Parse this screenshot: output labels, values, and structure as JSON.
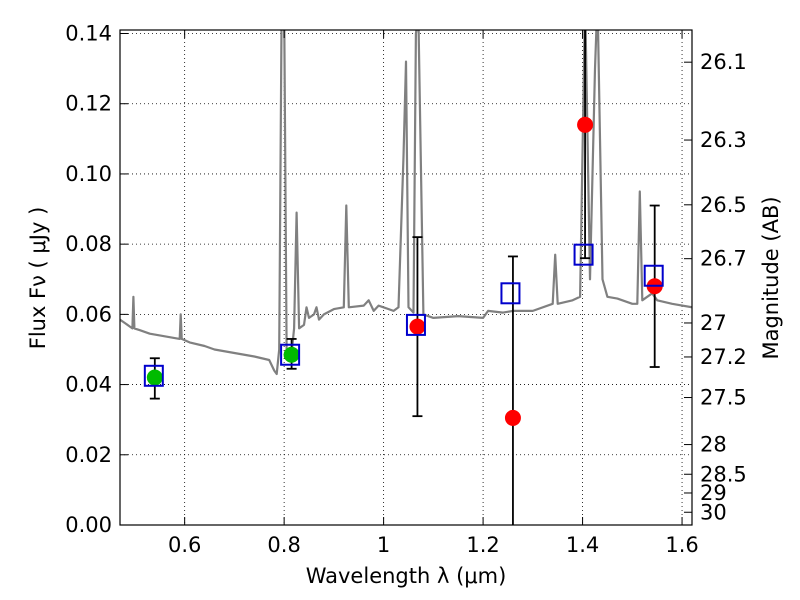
{
  "chart_data": {
    "type": "scatter",
    "xlabel": "Wavelength  λ (μm)",
    "ylabel": "Flux  Fν  ( μJy )",
    "y2label": "Magnitude (AB)",
    "xlim": [
      0.47,
      1.62
    ],
    "ylim": [
      0.0,
      0.141
    ],
    "grid": true,
    "xticks": [
      0.6,
      0.8,
      1.0,
      1.2,
      1.4,
      1.6
    ],
    "xtick_labels": [
      "0.6",
      "0.8",
      "1",
      "1.2",
      "1.4",
      "1.6"
    ],
    "yticks": [
      0.0,
      0.02,
      0.04,
      0.06,
      0.08,
      0.1,
      0.12,
      0.14
    ],
    "ytick_labels": [
      "0.00",
      "0.02",
      "0.04",
      "0.06",
      "0.08",
      "0.10",
      "0.12",
      "0.14"
    ],
    "mag_ticks": [
      26.1,
      26.3,
      26.5,
      26.7,
      27.0,
      27.2,
      27.5,
      28.0,
      28.5,
      29.0,
      30.0
    ],
    "mag_tick_labels": [
      "26.1",
      "26.3",
      "26.5",
      "26.7",
      "27",
      "27.2",
      "27.5",
      "28",
      "28.5",
      "29",
      "30"
    ],
    "colors": {
      "model_spectrum": "#808080",
      "ground_obs": "#00bb00",
      "hst_obs": "#ff0000",
      "model_phot": "#0000cc",
      "errorbar": "#000000"
    },
    "model_spectrum": [
      [
        0.47,
        0.0585
      ],
      [
        0.48,
        0.0575
      ],
      [
        0.49,
        0.0565
      ],
      [
        0.495,
        0.056
      ],
      [
        0.497,
        0.065
      ],
      [
        0.499,
        0.056
      ],
      [
        0.51,
        0.0555
      ],
      [
        0.53,
        0.0545
      ],
      [
        0.55,
        0.054
      ],
      [
        0.57,
        0.0535
      ],
      [
        0.59,
        0.053
      ],
      [
        0.592,
        0.06
      ],
      [
        0.594,
        0.053
      ],
      [
        0.61,
        0.052
      ],
      [
        0.64,
        0.051
      ],
      [
        0.66,
        0.05
      ],
      [
        0.7,
        0.049
      ],
      [
        0.74,
        0.048
      ],
      [
        0.77,
        0.047
      ],
      [
        0.78,
        0.044
      ],
      [
        0.785,
        0.043
      ],
      [
        0.79,
        0.05
      ],
      [
        0.795,
        0.15
      ],
      [
        0.8,
        0.15
      ],
      [
        0.805,
        0.05
      ],
      [
        0.815,
        0.049
      ],
      [
        0.82,
        0.056
      ],
      [
        0.825,
        0.089
      ],
      [
        0.83,
        0.056
      ],
      [
        0.84,
        0.057
      ],
      [
        0.845,
        0.062
      ],
      [
        0.85,
        0.059
      ],
      [
        0.86,
        0.06
      ],
      [
        0.865,
        0.062
      ],
      [
        0.87,
        0.0585
      ],
      [
        0.88,
        0.06
      ],
      [
        0.9,
        0.0615
      ],
      [
        0.92,
        0.062
      ],
      [
        0.925,
        0.091
      ],
      [
        0.93,
        0.062
      ],
      [
        0.96,
        0.0625
      ],
      [
        0.97,
        0.064
      ],
      [
        0.98,
        0.061
      ],
      [
        0.99,
        0.0625
      ],
      [
        1.02,
        0.061
      ],
      [
        1.03,
        0.062
      ],
      [
        1.04,
        0.105
      ],
      [
        1.045,
        0.132
      ],
      [
        1.05,
        0.062
      ],
      [
        1.06,
        0.0605
      ],
      [
        1.065,
        0.14
      ],
      [
        1.07,
        0.145
      ],
      [
        1.08,
        0.06
      ],
      [
        1.1,
        0.059
      ],
      [
        1.15,
        0.0595
      ],
      [
        1.2,
        0.059
      ],
      [
        1.21,
        0.061
      ],
      [
        1.24,
        0.0605
      ],
      [
        1.26,
        0.061
      ],
      [
        1.3,
        0.061
      ],
      [
        1.34,
        0.063
      ],
      [
        1.345,
        0.077
      ],
      [
        1.35,
        0.063
      ],
      [
        1.38,
        0.064
      ],
      [
        1.395,
        0.065
      ],
      [
        1.405,
        0.15
      ],
      [
        1.415,
        0.07
      ],
      [
        1.425,
        0.13
      ],
      [
        1.43,
        0.15
      ],
      [
        1.44,
        0.07
      ],
      [
        1.45,
        0.065
      ],
      [
        1.47,
        0.0645
      ],
      [
        1.5,
        0.063
      ],
      [
        1.51,
        0.063
      ],
      [
        1.515,
        0.095
      ],
      [
        1.52,
        0.064
      ],
      [
        1.53,
        0.065
      ],
      [
        1.54,
        0.066
      ],
      [
        1.55,
        0.064
      ],
      [
        1.58,
        0.063
      ],
      [
        1.62,
        0.062
      ]
    ],
    "model_phot": [
      {
        "x": 0.538,
        "y": 0.0425
      },
      {
        "x": 0.812,
        "y": 0.0485
      },
      {
        "x": 1.065,
        "y": 0.057
      },
      {
        "x": 1.255,
        "y": 0.066
      },
      {
        "x": 1.402,
        "y": 0.077
      },
      {
        "x": 1.543,
        "y": 0.071
      }
    ],
    "ground_obs": [
      {
        "x": 0.54,
        "y": 0.042,
        "yerr_low": 0.006,
        "yerr_high": 0.0055
      },
      {
        "x": 0.815,
        "y": 0.0485,
        "yerr_low": 0.004,
        "yerr_high": 0.0045
      }
    ],
    "hst_obs": [
      {
        "x": 1.068,
        "y": 0.0565,
        "yerr_low": 0.0255,
        "yerr_high": 0.0255
      },
      {
        "x": 1.26,
        "y": 0.0305,
        "yerr_low": 0.032,
        "yerr_high": 0.046
      },
      {
        "x": 1.405,
        "y": 0.114,
        "yerr_low": 0.038,
        "yerr_high": 0.03
      },
      {
        "x": 1.545,
        "y": 0.068,
        "yerr_low": 0.023,
        "yerr_high": 0.023
      }
    ]
  }
}
